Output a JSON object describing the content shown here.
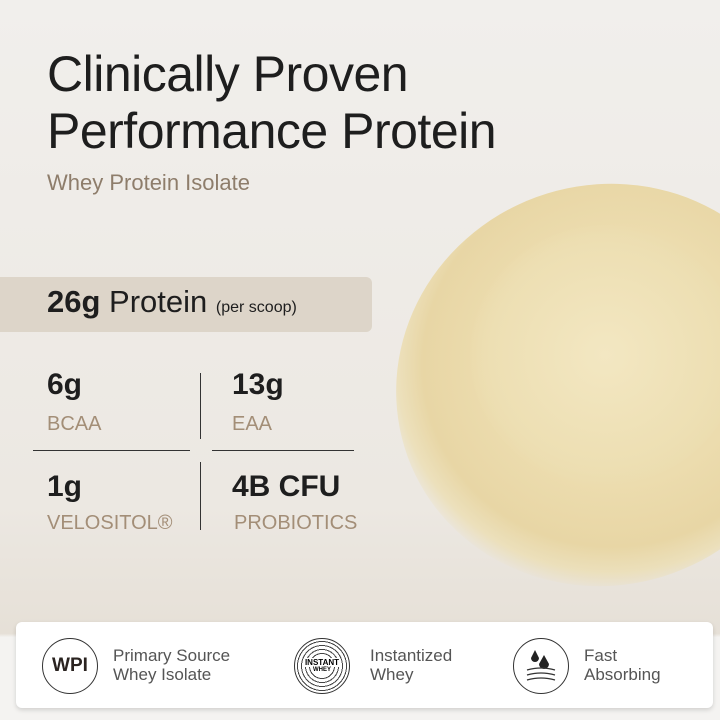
{
  "header": {
    "title_line1": "Clinically Proven",
    "title_line2": "Performance Protein",
    "subtitle": "Whey Protein Isolate"
  },
  "protein": {
    "amount": "26g",
    "label": "Protein",
    "note": "(per scoop)"
  },
  "stats": [
    {
      "value": "6g",
      "label": "BCAA"
    },
    {
      "value": "13g",
      "label": "EAA"
    },
    {
      "value": "1g",
      "label": "VELOSITOL®"
    },
    {
      "value": "4B CFU",
      "label": "PROBIOTICS"
    }
  ],
  "features": [
    {
      "icon": "wpi-badge-icon",
      "icon_text": "WPI",
      "line1": "Primary Source",
      "line2": "Whey Isolate"
    },
    {
      "icon": "instant-whey-icon",
      "icon_text1": "INSTANT",
      "icon_text2": "WHEY",
      "line1": "Instantized",
      "line2": "Whey"
    },
    {
      "icon": "droplets-layers-icon",
      "line1": "Fast",
      "line2": "Absorbing"
    }
  ]
}
